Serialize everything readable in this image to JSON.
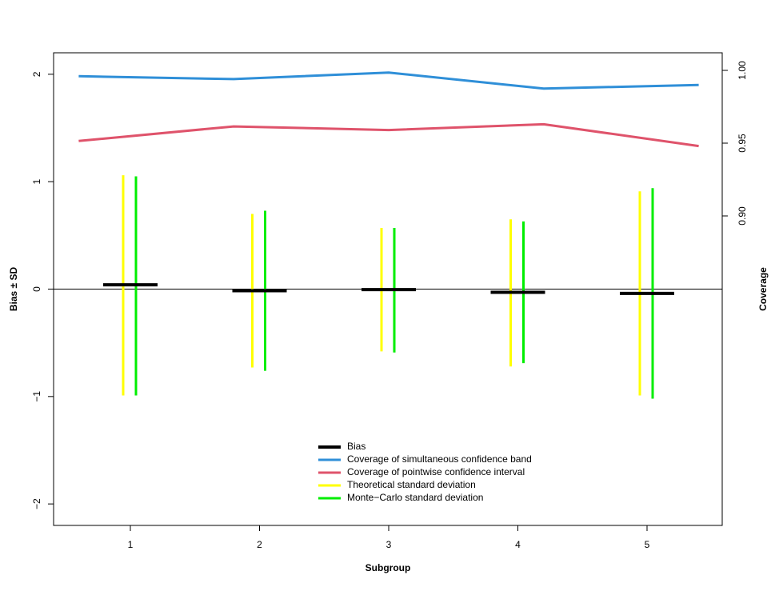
{
  "chart_data": {
    "type": "line",
    "xlabel": "Subgroup",
    "ylabel_left": "Bias ± SD",
    "ylabel_right": "Coverage",
    "categories": [
      "1",
      "2",
      "3",
      "4",
      "5"
    ],
    "left_axis": {
      "ylim": [
        -2.2,
        2.2
      ],
      "ticks": [
        -2,
        -1,
        0,
        1,
        2
      ],
      "tick_labels": [
        "−2",
        "−1",
        "0",
        "1",
        "2"
      ]
    },
    "right_axis": {
      "ylim": [
        0.85,
        1.0
      ],
      "ticks": [
        0.9,
        0.95,
        1.0
      ],
      "tick_labels": [
        "0.90",
        "0.95",
        "1.00"
      ]
    },
    "zero_line": 0,
    "bias": {
      "name": "Bias",
      "color": "#000000",
      "values": [
        0.04,
        -0.015,
        -0.005,
        -0.03,
        -0.04
      ]
    },
    "theoretical_sd": {
      "name": "Theoretical standard deviation",
      "color": "#ffff00",
      "low": [
        -0.99,
        -0.73,
        -0.58,
        -0.72,
        -0.99
      ],
      "high": [
        1.06,
        0.7,
        0.57,
        0.65,
        0.91
      ]
    },
    "montecarlo_sd": {
      "name": "Monte−Carlo standard deviation",
      "color": "#00ee00",
      "low": [
        -0.99,
        -0.76,
        -0.59,
        -0.69,
        -1.02
      ],
      "high": [
        1.05,
        0.73,
        0.57,
        0.63,
        0.94
      ]
    },
    "lines": [
      {
        "name": "Coverage of simultaneous confidence band",
        "color": "#2f8fd8",
        "x": [
          0.6,
          1.8,
          3.0,
          4.2,
          5.4
        ],
        "values": [
          0.996,
          0.994,
          0.9985,
          0.9875,
          0.99
        ]
      },
      {
        "name": "Coverage of pointwise confidence interval",
        "color": "#df536b",
        "x": [
          0.6,
          1.8,
          3.0,
          4.2,
          5.4
        ],
        "values": [
          0.9515,
          0.9615,
          0.959,
          0.963,
          0.948
        ]
      }
    ],
    "legend": {
      "position": "bottom-center",
      "entries": [
        {
          "label": "Bias",
          "color": "#000000"
        },
        {
          "label": "Coverage of simultaneous confidence band",
          "color": "#2f8fd8"
        },
        {
          "label": "Coverage of pointwise confidence interval",
          "color": "#df536b"
        },
        {
          "label": "Theoretical standard deviation",
          "color": "#ffff00"
        },
        {
          "label": "Monte−Carlo standard deviation",
          "color": "#00ee00"
        }
      ]
    },
    "grid": false
  }
}
